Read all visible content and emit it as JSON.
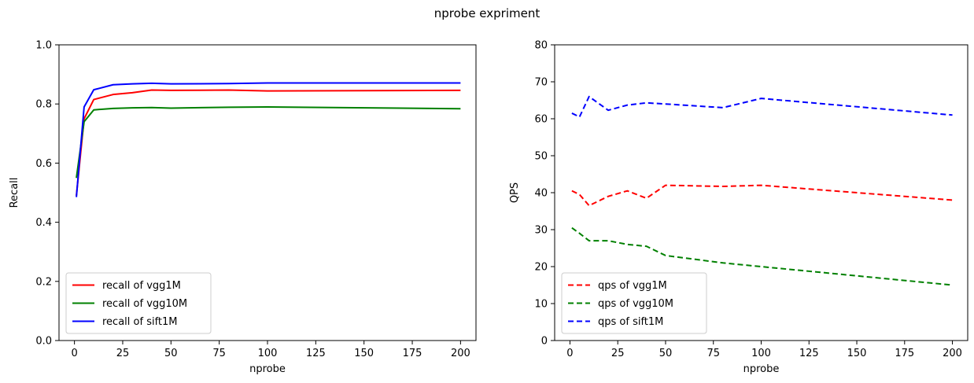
{
  "figure_title": "nprobe expriment",
  "chart_data": [
    {
      "type": "line",
      "xlabel": "nprobe",
      "ylabel": "Recall",
      "xlim": [
        -8,
        208
      ],
      "ylim": [
        0.0,
        1.0
      ],
      "xticks": [
        0,
        25,
        50,
        75,
        100,
        125,
        150,
        175,
        200
      ],
      "yticks": [
        0.0,
        0.2,
        0.4,
        0.6,
        0.8,
        1.0
      ],
      "ytick_labels": [
        "0.0",
        "0.2",
        "0.4",
        "0.6",
        "0.8",
        "1.0"
      ],
      "grid": false,
      "legend_position": "bottom-left",
      "series": [
        {
          "name": "recall of vgg1M",
          "color": "#ff0000",
          "dash": "solid",
          "x": [
            1,
            5,
            10,
            20,
            30,
            40,
            50,
            80,
            100,
            200
          ],
          "y": [
            0.49,
            0.75,
            0.815,
            0.832,
            0.838,
            0.847,
            0.846,
            0.847,
            0.844,
            0.846
          ]
        },
        {
          "name": "recall of vgg10M",
          "color": "#008000",
          "dash": "solid",
          "x": [
            1,
            5,
            10,
            20,
            30,
            40,
            50,
            80,
            100,
            200
          ],
          "y": [
            0.55,
            0.74,
            0.78,
            0.785,
            0.787,
            0.788,
            0.786,
            0.789,
            0.79,
            0.784
          ]
        },
        {
          "name": "recall of sift1M",
          "color": "#0000ff",
          "dash": "solid",
          "x": [
            1,
            5,
            10,
            20,
            30,
            40,
            50,
            80,
            100,
            200
          ],
          "y": [
            0.485,
            0.79,
            0.848,
            0.865,
            0.868,
            0.87,
            0.868,
            0.869,
            0.871,
            0.871
          ]
        }
      ]
    },
    {
      "type": "line",
      "xlabel": "nprobe",
      "ylabel": "QPS",
      "xlim": [
        -8,
        208
      ],
      "ylim": [
        0,
        80
      ],
      "xticks": [
        0,
        25,
        50,
        75,
        100,
        125,
        150,
        175,
        200
      ],
      "yticks": [
        0,
        10,
        20,
        30,
        40,
        50,
        60,
        70,
        80
      ],
      "ytick_labels": [
        "0",
        "10",
        "20",
        "30",
        "40",
        "50",
        "60",
        "70",
        "80"
      ],
      "grid": false,
      "legend_position": "bottom-left",
      "series": [
        {
          "name": "qps of vgg1M",
          "color": "#ff0000",
          "dash": "dashed",
          "x": [
            1,
            5,
            10,
            20,
            30,
            40,
            50,
            80,
            100,
            200
          ],
          "y": [
            40.5,
            39.5,
            36.5,
            39.0,
            40.5,
            38.5,
            42.0,
            41.7,
            42.0,
            38.0
          ]
        },
        {
          "name": "qps of vgg10M",
          "color": "#008000",
          "dash": "dashed",
          "x": [
            1,
            5,
            10,
            20,
            30,
            40,
            50,
            80,
            100,
            200
          ],
          "y": [
            30.5,
            29.0,
            27.0,
            27.0,
            26.0,
            25.5,
            23.0,
            21.0,
            20.0,
            15.0
          ]
        },
        {
          "name": "qps of sift1M",
          "color": "#0000ff",
          "dash": "dashed",
          "x": [
            1,
            5,
            10,
            20,
            30,
            40,
            50,
            80,
            100,
            200
          ],
          "y": [
            61.5,
            60.5,
            66.0,
            62.3,
            63.7,
            64.3,
            64.0,
            63.0,
            65.5,
            61.0
          ]
        }
      ]
    }
  ]
}
